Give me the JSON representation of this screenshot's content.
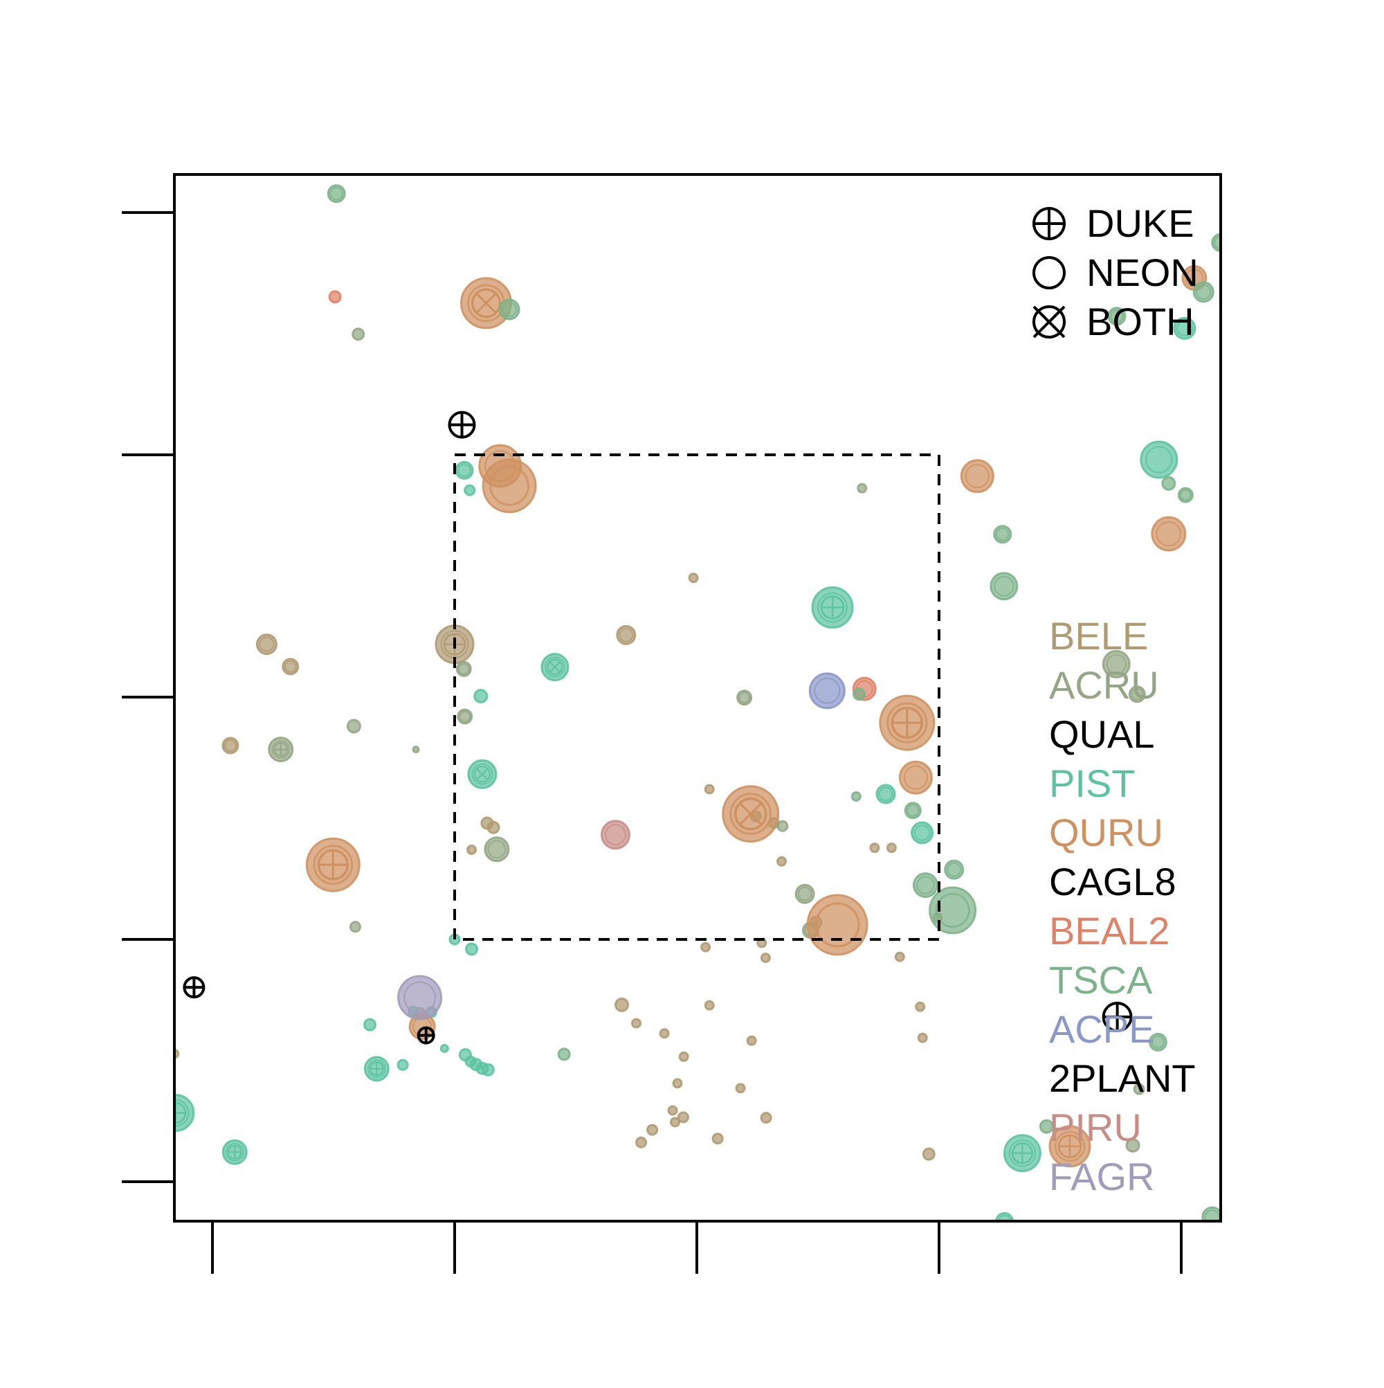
{
  "chart_data": {
    "type": "scatter",
    "title": "",
    "xlabel": "",
    "ylabel": "",
    "xlim": [
      -0.08,
      2.08
    ],
    "ylim": [
      -0.08,
      2.08
    ],
    "x_ticks": [
      0,
      0.5,
      1,
      1.5,
      2
    ],
    "y_ticks": [
      0,
      0.5,
      1,
      1.5,
      2
    ],
    "tick_labels_shown": false,
    "grid": false,
    "inner_box": {
      "x": [
        0.5,
        1.5
      ],
      "y": [
        0.5,
        1.5
      ],
      "style": "dashed"
    },
    "shape_legend": {
      "placement": "top-right",
      "items": [
        {
          "symbol": "circle-plus",
          "label": "DUKE"
        },
        {
          "symbol": "circle",
          "label": "NEON"
        },
        {
          "symbol": "circle-cross",
          "label": "BOTH"
        }
      ]
    },
    "species_legend": {
      "placement": "right",
      "items": [
        {
          "label": "BELE",
          "color": "#b09a72"
        },
        {
          "label": "ACRU",
          "color": "#94a685"
        },
        {
          "label": "QUAL",
          "color": "#000000"
        },
        {
          "label": "PIST",
          "color": "#5cc3a0"
        },
        {
          "label": "QURU",
          "color": "#cf9160"
        },
        {
          "label": "CAGL8",
          "color": "#000000"
        },
        {
          "label": "BEAL2",
          "color": "#de8268"
        },
        {
          "label": "TSCA",
          "color": "#7db38b"
        },
        {
          "label": "ACPE",
          "color": "#8997c9"
        },
        {
          "label": "2PLANT",
          "color": "#000000"
        },
        {
          "label": "PIRU",
          "color": "#c98d87"
        },
        {
          "label": "FAGR",
          "color": "#a29bbb"
        }
      ]
    },
    "series": [
      {
        "name": "BELE",
        "points": [
          {
            "x": 0.037,
            "y": 0.9,
            "r": 11,
            "s": "neon"
          },
          {
            "x": 0.112,
            "y": 1.109,
            "r": 14,
            "s": "neon"
          },
          {
            "x": 0.161,
            "y": 1.063,
            "r": 11,
            "s": "neon"
          },
          {
            "x": 0.5,
            "y": 1.109,
            "r": 27,
            "s": "duke"
          },
          {
            "x": 0.535,
            "y": 0.685,
            "r": 6,
            "s": "neon"
          },
          {
            "x": 0.567,
            "y": 0.74,
            "r": 8,
            "s": "neon"
          },
          {
            "x": 0.58,
            "y": 0.731,
            "r": 8,
            "s": "neon"
          },
          {
            "x": 0.428,
            "y": 0.347,
            "r": 8,
            "s": "neon"
          },
          {
            "x": 0.993,
            "y": 1.246,
            "r": 6,
            "s": "neon"
          },
          {
            "x": 0.854,
            "y": 1.128,
            "r": 13,
            "s": "neon"
          },
          {
            "x": 1.026,
            "y": 0.81,
            "r": 6,
            "s": "neon"
          },
          {
            "x": 0.845,
            "y": 0.365,
            "r": 9,
            "s": "neon"
          },
          {
            "x": 0.875,
            "y": 0.327,
            "r": 6,
            "s": "neon"
          },
          {
            "x": 0.933,
            "y": 0.306,
            "r": 6,
            "s": "neon"
          },
          {
            "x": 0.973,
            "y": 0.258,
            "r": 6,
            "s": "neon"
          },
          {
            "x": 0.955,
            "y": 0.123,
            "r": 6,
            "s": "neon"
          },
          {
            "x": 0.96,
            "y": 0.203,
            "r": 6,
            "s": "neon"
          },
          {
            "x": 0.95,
            "y": 0.147,
            "r": 6,
            "s": "neon"
          },
          {
            "x": 1.026,
            "y": 0.364,
            "r": 6,
            "s": "neon"
          },
          {
            "x": 1.09,
            "y": 0.193,
            "r": 6,
            "s": "neon"
          },
          {
            "x": 1.043,
            "y": 0.089,
            "r": 7,
            "s": "neon"
          },
          {
            "x": 1.113,
            "y": 0.291,
            "r": 6,
            "s": "neon"
          },
          {
            "x": 1.018,
            "y": 0.484,
            "r": 6,
            "s": "neon"
          },
          {
            "x": 1.134,
            "y": 0.493,
            "r": 6,
            "s": "neon"
          },
          {
            "x": 1.142,
            "y": 0.462,
            "r": 6,
            "s": "neon"
          },
          {
            "x": 1.175,
            "y": 0.661,
            "r": 6,
            "s": "neon"
          },
          {
            "x": 1.419,
            "y": 0.464,
            "r": 6,
            "s": "neon"
          },
          {
            "x": 1.367,
            "y": 0.689,
            "r": 6,
            "s": "neon"
          },
          {
            "x": 1.402,
            "y": 0.689,
            "r": 6,
            "s": "neon"
          },
          {
            "x": 1.461,
            "y": 0.361,
            "r": 6,
            "s": "neon"
          },
          {
            "x": 1.466,
            "y": 0.297,
            "r": 6,
            "s": "neon"
          },
          {
            "x": 1.497,
            "y": 0.545,
            "r": 6,
            "s": "neon"
          },
          {
            "x": -0.079,
            "y": 0.264,
            "r": 6,
            "s": "neon"
          },
          {
            "x": 1.479,
            "y": 0.057,
            "r": 8,
            "s": "neon"
          },
          {
            "x": 0.885,
            "y": 0.081,
            "r": 7,
            "s": "neon"
          },
          {
            "x": 0.908,
            "y": 0.107,
            "r": 7,
            "s": "neon"
          },
          {
            "x": 0.972,
            "y": 0.133,
            "r": 7,
            "s": "neon"
          },
          {
            "x": 1.143,
            "y": 0.132,
            "r": 7,
            "s": "neon"
          }
        ]
      },
      {
        "name": "ACRU",
        "points": [
          {
            "x": 0.141,
            "y": 0.892,
            "r": 17,
            "s": "duke"
          },
          {
            "x": 0.292,
            "y": 0.94,
            "r": 9,
            "s": "neon"
          },
          {
            "x": 0.42,
            "y": 0.892,
            "r": 4,
            "s": "neon"
          },
          {
            "x": 0.521,
            "y": 0.96,
            "r": 10,
            "s": "neon"
          },
          {
            "x": 0.519,
            "y": 1.058,
            "r": 10,
            "s": "neon"
          },
          {
            "x": 0.587,
            "y": 0.686,
            "r": 17,
            "s": "neon"
          },
          {
            "x": 1.098,
            "y": 0.999,
            "r": 10,
            "s": "neon"
          },
          {
            "x": 1.122,
            "y": 0.754,
            "r": 7,
            "s": "neon"
          },
          {
            "x": 1.177,
            "y": 0.734,
            "r": 7,
            "s": "neon"
          },
          {
            "x": 1.159,
            "y": 0.74,
            "r": 7,
            "s": "neon"
          },
          {
            "x": 1.223,
            "y": 0.594,
            "r": 13,
            "s": "neon"
          },
          {
            "x": 1.341,
            "y": 1.431,
            "r": 6,
            "s": "neon"
          },
          {
            "x": 1.235,
            "y": 0.519,
            "r": 11,
            "s": "neon"
          },
          {
            "x": 1.246,
            "y": 0.535,
            "r": 8,
            "s": "neon"
          },
          {
            "x": 0.295,
            "y": 0.526,
            "r": 7,
            "s": "neon"
          },
          {
            "x": 1.866,
            "y": 1.068,
            "r": 19,
            "s": "neon"
          },
          {
            "x": 1.909,
            "y": 1.006,
            "r": 11,
            "s": "neon"
          },
          {
            "x": 0.301,
            "y": 1.749,
            "r": 8,
            "s": "neon"
          },
          {
            "x": 1.9,
            "y": 0.075,
            "r": 9,
            "s": "neon"
          },
          {
            "x": 1.913,
            "y": 0.191,
            "r": 7,
            "s": "neon"
          }
        ]
      },
      {
        "name": "PIST",
        "points": [
          {
            "x": 0.479,
            "y": 0.275,
            "r": 5,
            "s": "neon"
          },
          {
            "x": 0.339,
            "y": 0.233,
            "r": 17,
            "s": "duke"
          },
          {
            "x": 0.415,
            "y": 0.351,
            "r": 7,
            "s": "neon"
          },
          {
            "x": 0.452,
            "y": 0.35,
            "r": 7,
            "s": "neon"
          },
          {
            "x": 0.533,
            "y": 0.248,
            "r": 7,
            "s": "neon"
          },
          {
            "x": 0.557,
            "y": 0.234,
            "r": 8,
            "s": "neon"
          },
          {
            "x": 0.544,
            "y": 0.242,
            "r": 8,
            "s": "neon"
          },
          {
            "x": 0.522,
            "y": 0.262,
            "r": 8,
            "s": "neon"
          },
          {
            "x": 0.569,
            "y": 0.231,
            "r": 8,
            "s": "neon"
          },
          {
            "x": 0.554,
            "y": 1.002,
            "r": 9,
            "s": "neon"
          },
          {
            "x": 0.531,
            "y": 1.427,
            "r": 7,
            "s": "neon"
          },
          {
            "x": -0.076,
            "y": 0.142,
            "r": 26,
            "s": "duke"
          },
          {
            "x": 0.046,
            "y": 0.061,
            "r": 17,
            "s": "duke"
          },
          {
            "x": 0.325,
            "y": 0.324,
            "r": 8,
            "s": "neon"
          },
          {
            "x": 0.393,
            "y": 0.241,
            "r": 7,
            "s": "neon"
          },
          {
            "x": 0.5,
            "y": 0.5,
            "r": 7,
            "s": "neon"
          },
          {
            "x": 0.52,
            "y": 1.468,
            "r": 12,
            "s": "neon"
          },
          {
            "x": 0.535,
            "y": 0.48,
            "r": 8,
            "s": "neon"
          },
          {
            "x": 0.557,
            "y": 0.841,
            "r": 20,
            "s": "both"
          },
          {
            "x": 0.707,
            "y": 1.062,
            "r": 19,
            "s": "both"
          },
          {
            "x": 1.672,
            "y": 0.059,
            "r": 26,
            "s": "duke"
          },
          {
            "x": 1.28,
            "y": 1.185,
            "r": 29,
            "s": "duke"
          },
          {
            "x": 1.39,
            "y": 0.8,
            "r": 13,
            "s": "neon"
          },
          {
            "x": 1.465,
            "y": 0.72,
            "r": 15,
            "s": "neon"
          },
          {
            "x": 1.954,
            "y": 1.49,
            "r": 26,
            "s": "neon"
          },
          {
            "x": 2.007,
            "y": 1.761,
            "r": 15,
            "s": "neon"
          },
          {
            "x": 1.635,
            "y": -0.082,
            "r": 12,
            "s": "neon"
          }
        ]
      },
      {
        "name": "QURU",
        "points": [
          {
            "x": 0.249,
            "y": 0.654,
            "r": 38,
            "s": "duke"
          },
          {
            "x": 0.565,
            "y": 1.813,
            "r": 36,
            "s": "both"
          },
          {
            "x": 0.594,
            "y": 1.477,
            "r": 30,
            "s": "neon"
          },
          {
            "x": 0.613,
            "y": 1.436,
            "r": 38,
            "s": "neon"
          },
          {
            "x": 1.111,
            "y": 0.759,
            "r": 40,
            "s": "both"
          },
          {
            "x": 1.434,
            "y": 0.947,
            "r": 39,
            "s": "duke"
          },
          {
            "x": 1.452,
            "y": 0.834,
            "r": 23,
            "s": "neon"
          },
          {
            "x": 1.29,
            "y": 0.53,
            "r": 43,
            "s": "neon"
          },
          {
            "x": 1.77,
            "y": 0.073,
            "r": 29,
            "s": "duke"
          },
          {
            "x": 1.579,
            "y": 1.456,
            "r": 23,
            "s": "neon"
          },
          {
            "x": 1.974,
            "y": 1.337,
            "r": 24,
            "s": "neon"
          },
          {
            "x": 0.433,
            "y": 0.32,
            "r": 18,
            "s": "neon"
          },
          {
            "x": 2.027,
            "y": 1.865,
            "r": 17,
            "s": "neon"
          }
        ]
      },
      {
        "name": "BEAL2",
        "points": [
          {
            "x": 0.253,
            "y": 1.826,
            "r": 8,
            "s": "neon"
          },
          {
            "x": 1.346,
            "y": 1.017,
            "r": 16,
            "s": "neon"
          }
        ]
      },
      {
        "name": "TSCA",
        "points": [
          {
            "x": 0.256,
            "y": 2.039,
            "r": 12,
            "s": "neon"
          },
          {
            "x": 0.613,
            "y": 1.8,
            "r": 14,
            "s": "neon"
          },
          {
            "x": 1.446,
            "y": 0.766,
            "r": 11,
            "s": "neon"
          },
          {
            "x": 1.472,
            "y": 0.612,
            "r": 17,
            "s": "neon"
          },
          {
            "x": 1.531,
            "y": 0.644,
            "r": 13,
            "s": "neon"
          },
          {
            "x": 1.528,
            "y": 0.56,
            "r": 33,
            "s": "neon"
          },
          {
            "x": 1.631,
            "y": 1.336,
            "r": 12,
            "s": "neon"
          },
          {
            "x": 1.634,
            "y": 1.229,
            "r": 19,
            "s": "neon"
          },
          {
            "x": 1.867,
            "y": 1.786,
            "r": 12,
            "s": "neon"
          },
          {
            "x": 1.974,
            "y": 1.441,
            "r": 9,
            "s": "neon"
          },
          {
            "x": 2.009,
            "y": 1.417,
            "r": 10,
            "s": "neon"
          },
          {
            "x": 2.046,
            "y": 1.836,
            "r": 14,
            "s": "neon"
          },
          {
            "x": 2.081,
            "y": 1.938,
            "r": 12,
            "s": "neon"
          },
          {
            "x": 1.722,
            "y": 0.114,
            "r": 9,
            "s": "neon"
          },
          {
            "x": 1.952,
            "y": 0.288,
            "r": 12,
            "s": "neon"
          },
          {
            "x": 2.064,
            "y": -0.073,
            "r": 14,
            "s": "neon"
          },
          {
            "x": 0.726,
            "y": 0.263,
            "r": 8,
            "s": "neon"
          },
          {
            "x": 1.329,
            "y": 0.795,
            "r": 6,
            "s": "neon"
          },
          {
            "x": 1.335,
            "y": 1.006,
            "r": 8,
            "s": "neon"
          }
        ]
      },
      {
        "name": "ACPE",
        "points": [
          {
            "x": 1.269,
            "y": 1.013,
            "r": 25,
            "s": "neon"
          }
        ]
      },
      {
        "name": "PIRU",
        "points": [
          {
            "x": 0.832,
            "y": 0.716,
            "r": 20,
            "s": "neon"
          }
        ]
      },
      {
        "name": "FAGR",
        "points": [
          {
            "x": 0.428,
            "y": 0.38,
            "r": 31,
            "s": "neon"
          }
        ]
      },
      {
        "name": "QUAL",
        "points": [
          {
            "x": 0.515,
            "y": 1.562,
            "r": 18,
            "s": "duke"
          },
          {
            "x": -0.038,
            "y": 0.401,
            "r": 14,
            "s": "duke"
          },
          {
            "x": 0.441,
            "y": 0.302,
            "r": 11,
            "s": "duke"
          },
          {
            "x": 1.868,
            "y": 0.34,
            "r": 20,
            "s": "duke"
          }
        ]
      }
    ]
  }
}
